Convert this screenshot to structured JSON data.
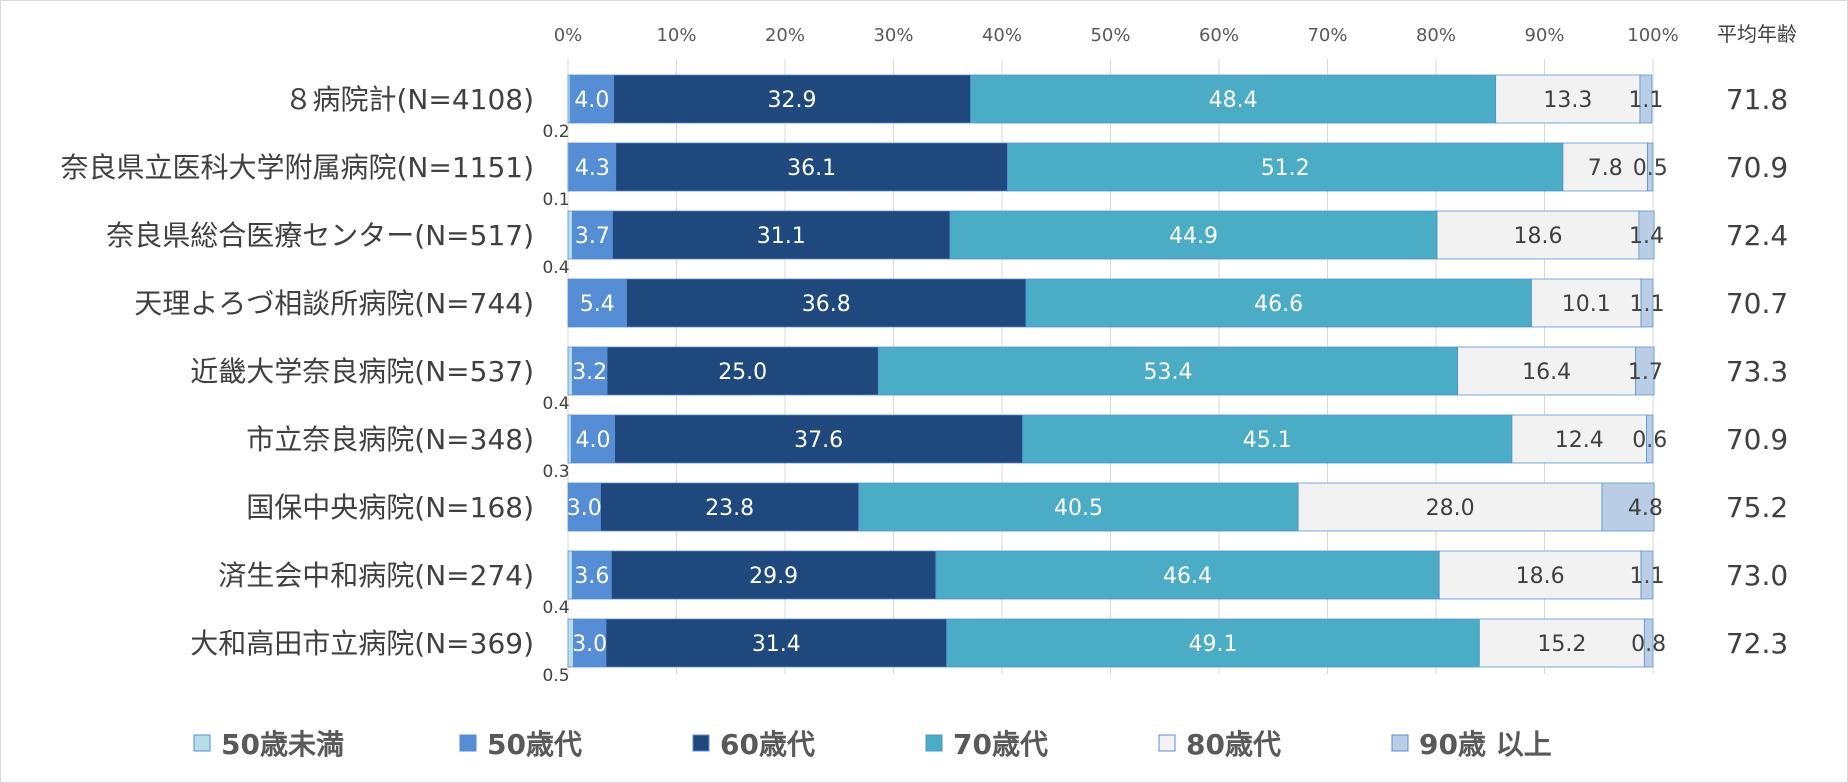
{
  "chart_data": {
    "type": "bar",
    "orientation": "horizontal",
    "stacked": "100%",
    "title": "",
    "xlabel": "",
    "ylabel": "",
    "xlim": [
      0,
      100
    ],
    "x_ticks": [
      "0%",
      "10%",
      "20%",
      "30%",
      "40%",
      "50%",
      "60%",
      "70%",
      "80%",
      "90%",
      "100%"
    ],
    "grid": true,
    "legend_position": "bottom",
    "extra_column_header": "平均年齢",
    "categories": [
      "８病院計(N=4108)",
      "奈良県立医科大学附属病院(N=1151)",
      "奈良県総合医療センター(N=517)",
      "天理よろづ相談所病院(N=744)",
      "近畿大学奈良病院(N=537)",
      "市立奈良病院(N=348)",
      "国保中央病院(N=168)",
      "済生会中和病院(N=274)",
      "大和高田市立病院(N=369)"
    ],
    "series": [
      {
        "name": "50歳未満",
        "color": "#b7dee8",
        "values": [
          0.2,
          0.1,
          0.4,
          0.0,
          0.4,
          0.3,
          0.0,
          0.4,
          0.5
        ],
        "labels": [
          "0.2",
          "0.1",
          "0.4",
          "",
          "0.4",
          "0.3",
          "",
          "0.4",
          "0.5"
        ]
      },
      {
        "name": "50歳代",
        "color": "#558ed5",
        "values": [
          4.0,
          4.3,
          3.7,
          5.4,
          3.2,
          4.0,
          3.0,
          3.6,
          3.0
        ],
        "labels": [
          "4.0",
          "4.3",
          "3.7",
          "5.4",
          "3.2",
          "4.0",
          "3.0",
          "3.6",
          "3.0"
        ]
      },
      {
        "name": "60歳代",
        "color": "#1f497d",
        "values": [
          32.9,
          36.1,
          31.1,
          36.8,
          25.0,
          37.6,
          23.8,
          29.9,
          31.4
        ],
        "labels": [
          "32.9",
          "36.1",
          "31.1",
          "36.8",
          "25.0",
          "37.6",
          "23.8",
          "29.9",
          "31.4"
        ]
      },
      {
        "name": "70歳代",
        "color": "#4bacc6",
        "values": [
          48.4,
          51.2,
          44.9,
          46.6,
          53.4,
          45.1,
          40.5,
          46.4,
          49.1
        ],
        "labels": [
          "48.4",
          "51.2",
          "44.9",
          "46.6",
          "53.4",
          "45.1",
          "40.5",
          "46.4",
          "49.1"
        ]
      },
      {
        "name": "80歳代",
        "color": "#f2f2f2",
        "values": [
          13.3,
          7.8,
          18.6,
          10.1,
          16.4,
          12.4,
          28.0,
          18.6,
          15.2
        ],
        "labels": [
          "13.3",
          "7.8",
          "18.6",
          "10.1",
          "16.4",
          "12.4",
          "28.0",
          "18.6",
          "15.2"
        ]
      },
      {
        "name": "90歳以上",
        "color": "#b9cde5",
        "values": [
          1.1,
          0.5,
          1.4,
          1.1,
          1.7,
          0.6,
          4.8,
          1.1,
          0.8
        ],
        "labels": [
          "1.1",
          "0.5",
          "1.4",
          "1.1",
          "1.7",
          "0.6",
          "4.8",
          "1.1",
          "0.8"
        ]
      }
    ],
    "average_age": [
      "71.8",
      "70.9",
      "72.4",
      "70.7",
      "73.3",
      "70.9",
      "75.2",
      "73.0",
      "72.3"
    ],
    "legend": [
      "50歳未満",
      "50歳代",
      "60歳代",
      "70歳代",
      "80歳代",
      "90歳 以上"
    ]
  }
}
